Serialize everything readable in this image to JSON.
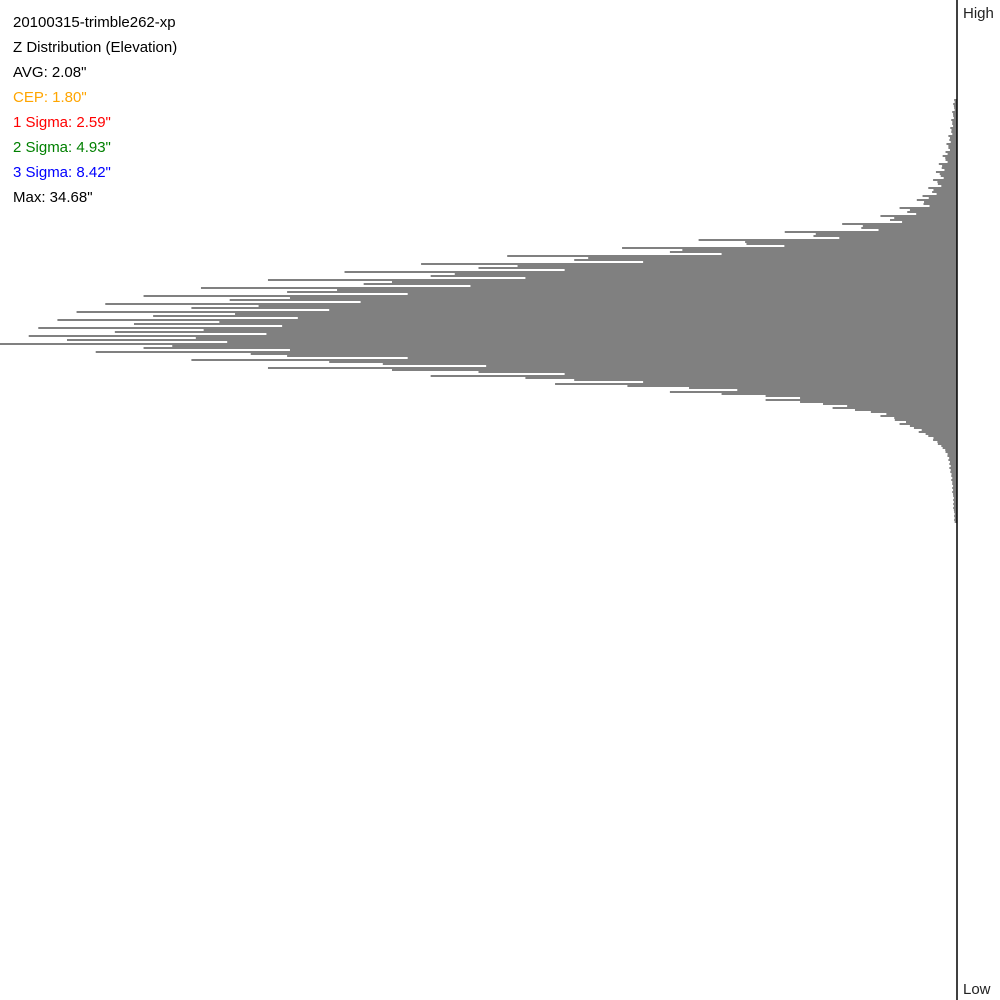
{
  "info": {
    "dataset": "20100315-trimble262-xp",
    "title": "Z Distribution (Elevation)",
    "avg": "AVG: 2.08\"",
    "cep": "CEP: 1.80\"",
    "sigma1": "1 Sigma: 2.59\"",
    "sigma2": "2 Sigma: 4.93\"",
    "sigma3": "3 Sigma: 8.42\"",
    "max": "Max: 34.68\""
  },
  "colors": {
    "text": "#000000",
    "cep": "#FFA500",
    "sigma1": "#FF0000",
    "sigma2": "#008000",
    "sigma3": "#0000FF",
    "bars": "#000000"
  },
  "chart_data": {
    "type": "bar",
    "orientation": "horizontal",
    "title": "Z Distribution (Elevation)",
    "axis_top_label": "High",
    "axis_bottom_label": "Low",
    "bars_extend": "leftward from right baseline",
    "value_unit": "percent of peak bin count",
    "values": [
      0.3,
      0.4,
      0.3,
      0.5,
      0.4,
      0.6,
      0.5,
      0.7,
      0.6,
      0.9,
      0.8,
      1.1,
      0.9,
      1.2,
      1.5,
      1.2,
      1.9,
      1.6,
      2.2,
      1.7,
      2.5,
      2.0,
      3.0,
      2.6,
      3.6,
      4.2,
      3.5,
      6.0,
      5.2,
      8.0,
      7.0,
      12,
      10,
      18,
      15,
      27,
      22,
      35,
      30,
      47,
      40,
      56,
      50,
      64,
      55,
      72,
      62,
      79,
      70,
      85,
      76,
      89,
      80,
      92,
      84,
      94,
      86,
      96,
      88,
      97,
      93,
      100,
      85,
      90,
      70,
      80,
      60,
      72,
      50,
      55,
      40,
      42,
      28,
      30,
      20,
      20,
      14,
      13,
      9,
      8,
      6.5,
      6,
      4.5,
      4,
      3,
      2.5,
      2,
      1.5,
      1.2,
      1,
      0.9,
      0.8,
      0.8,
      0.7,
      0.6,
      0.6,
      0.5,
      0.5,
      0.5,
      0.4,
      0.4,
      0.4,
      0.4,
      0.3,
      0.3,
      0.3
    ],
    "grid": false,
    "legend": "none"
  }
}
